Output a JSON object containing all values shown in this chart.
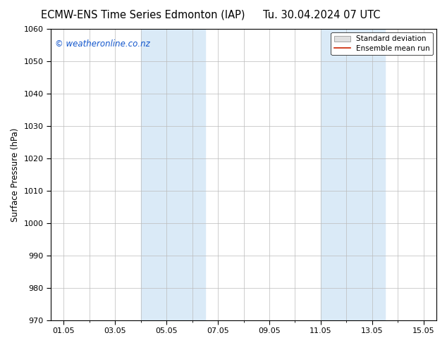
{
  "title_left": "ECMW-ENS Time Series Edmonton (IAP)",
  "title_right": "Tu. 30.04.2024 07 UTC",
  "ylabel": "Surface Pressure (hPa)",
  "ylim": [
    970,
    1060
  ],
  "yticks": [
    970,
    980,
    990,
    1000,
    1010,
    1020,
    1030,
    1040,
    1050,
    1060
  ],
  "xtick_labels": [
    "01.05",
    "03.05",
    "05.05",
    "07.05",
    "09.05",
    "11.05",
    "13.05",
    "15.05"
  ],
  "xtick_positions": [
    0,
    2,
    4,
    6,
    8,
    10,
    12,
    14
  ],
  "x_min": -0.5,
  "x_max": 14.5,
  "shaded_regions": [
    {
      "x_start": 3.0,
      "x_end": 5.5,
      "color": "#daeaf7"
    },
    {
      "x_start": 10.0,
      "x_end": 12.5,
      "color": "#daeaf7"
    }
  ],
  "watermark": "© weatheronline.co.nz",
  "watermark_color": "#1155cc",
  "legend_std_label": "Standard deviation",
  "legend_mean_label": "Ensemble mean run",
  "legend_std_facecolor": "#e0e0e0",
  "legend_std_edgecolor": "#999999",
  "legend_mean_color": "#cc2200",
  "bg_color": "#ffffff",
  "plot_bg_color": "#ffffff",
  "grid_color": "#bbbbbb",
  "border_color": "#000000",
  "title_fontsize": 10.5,
  "tick_fontsize": 8,
  "ylabel_fontsize": 8.5,
  "watermark_fontsize": 8.5,
  "legend_fontsize": 7.5
}
